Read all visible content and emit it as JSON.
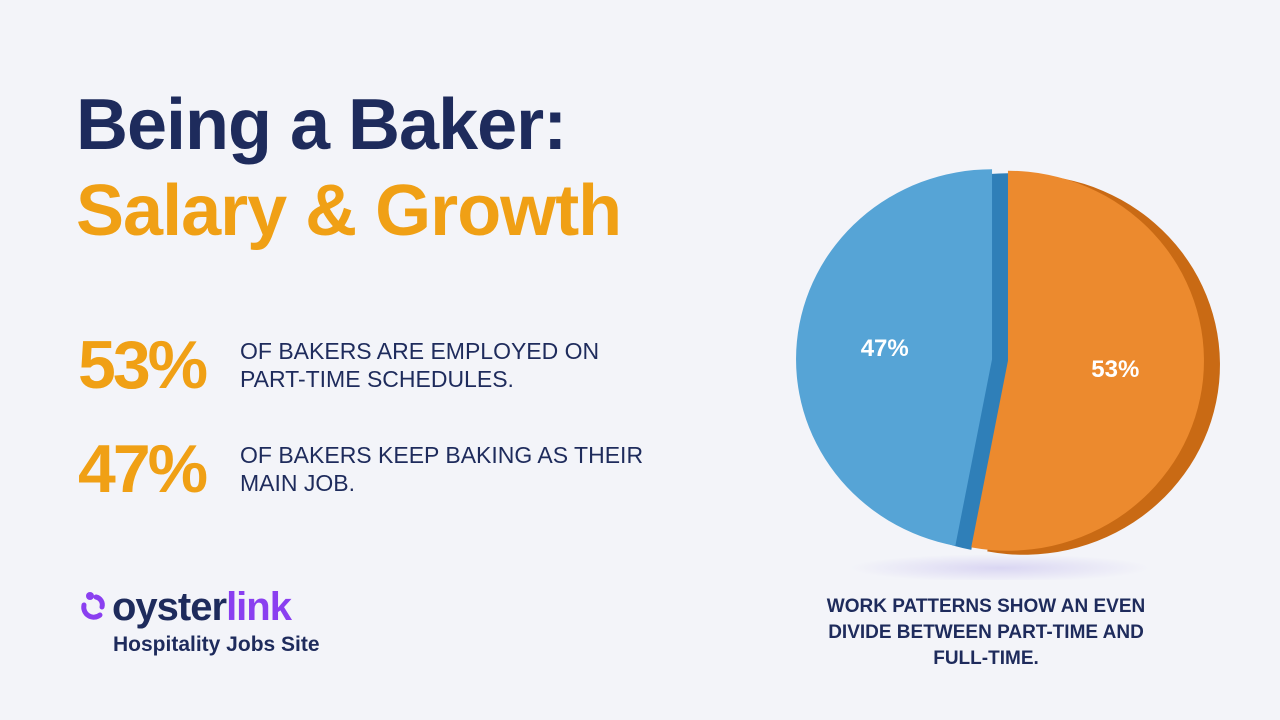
{
  "title_line1": "Being a Baker:",
  "title_line2": "Salary & Growth",
  "stats": [
    {
      "value": "53%",
      "text": "OF BAKERS ARE EMPLOYED ON PART-TIME SCHEDULES."
    },
    {
      "value": "47%",
      "text": "OF BAKERS KEEP BAKING AS THEIR MAIN JOB."
    }
  ],
  "logo": {
    "word1": "oyster",
    "word2": "link",
    "tagline": "Hospitality Jobs Site"
  },
  "caption": "WORK PATTERNS SHOW AN EVEN DIVIDE BETWEEN PART-TIME AND FULL-TIME.",
  "chart_data": {
    "type": "pie",
    "values": [
      53,
      47
    ],
    "value_labels": [
      "53%",
      "47%"
    ],
    "colors": [
      "#ec8a2e",
      "#56a4d6"
    ],
    "side_colors": [
      "#c96a14",
      "#2f7fb8"
    ]
  }
}
